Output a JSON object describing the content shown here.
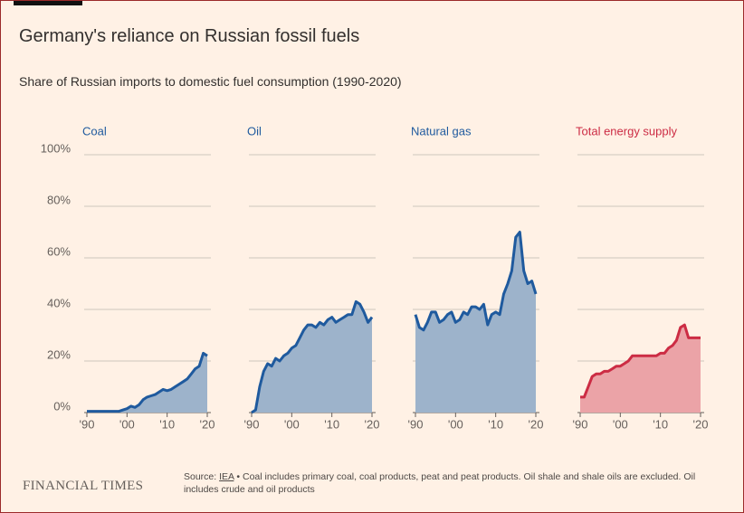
{
  "title": "Germany's reliance on Russian fossil fuels",
  "subtitle": "Share of Russian imports to domestic fuel consumption (1990-2020)",
  "brand": "FINANCIAL TIMES",
  "source_prefix": "Source:",
  "source_link": "IEA",
  "source_note": "• Coal includes primary coal, coal products, peat and peat products. Oil shale and shale oils are excluded. Oil includes crude and oil products",
  "chart_data": [
    {
      "type": "area",
      "title": "Coal",
      "line_color": "#1f5a9e",
      "fill_color": "#9db3cb",
      "x": [
        1990,
        1991,
        1992,
        1993,
        1994,
        1995,
        1996,
        1997,
        1998,
        1999,
        2000,
        2001,
        2002,
        2003,
        2004,
        2005,
        2006,
        2007,
        2008,
        2009,
        2010,
        2011,
        2012,
        2013,
        2014,
        2015,
        2016,
        2017,
        2018,
        2019,
        2020
      ],
      "values": [
        0.5,
        0.5,
        0.5,
        0.5,
        0.5,
        0.5,
        0.5,
        0.5,
        0.5,
        1,
        1.5,
        2.5,
        2,
        3,
        5,
        6,
        6.5,
        7,
        8,
        9,
        8.5,
        9,
        10,
        11,
        12,
        13,
        15,
        17,
        18,
        23,
        22
      ],
      "xlim": [
        1990,
        2020
      ],
      "ylim": [
        0,
        100
      ],
      "xticks": [
        {
          "value": 1990,
          "label": "'90"
        },
        {
          "value": 2000,
          "label": "'00"
        },
        {
          "value": 2010,
          "label": "'10"
        },
        {
          "value": 2020,
          "label": "'20"
        }
      ],
      "yticks": [
        {
          "value": 0,
          "label": "0%"
        },
        {
          "value": 20,
          "label": "20%"
        },
        {
          "value": 40,
          "label": "40%"
        },
        {
          "value": 60,
          "label": "60%"
        },
        {
          "value": 80,
          "label": "80%"
        },
        {
          "value": 100,
          "label": "100%"
        }
      ],
      "grid": true
    },
    {
      "type": "area",
      "title": "Oil",
      "line_color": "#1f5a9e",
      "fill_color": "#9db3cb",
      "x": [
        1990,
        1991,
        1992,
        1993,
        1994,
        1995,
        1996,
        1997,
        1998,
        1999,
        2000,
        2001,
        2002,
        2003,
        2004,
        2005,
        2006,
        2007,
        2008,
        2009,
        2010,
        2011,
        2012,
        2013,
        2014,
        2015,
        2016,
        2017,
        2018,
        2019,
        2020
      ],
      "values": [
        0,
        1,
        10,
        16,
        19,
        18,
        21,
        20,
        22,
        23,
        25,
        26,
        29,
        32,
        34,
        34,
        33,
        35,
        34,
        36,
        37,
        35,
        36,
        37,
        38,
        38,
        43,
        42,
        39,
        35,
        37
      ],
      "xlim": [
        1990,
        2020
      ],
      "ylim": [
        0,
        100
      ],
      "xticks": [
        {
          "value": 1990,
          "label": "'90"
        },
        {
          "value": 2000,
          "label": "'00"
        },
        {
          "value": 2010,
          "label": "'10"
        },
        {
          "value": 2020,
          "label": "'20"
        }
      ],
      "yticks": [
        0,
        20,
        40,
        60,
        80,
        100
      ],
      "grid": true
    },
    {
      "type": "area",
      "title": "Natural gas",
      "line_color": "#1f5a9e",
      "fill_color": "#9db3cb",
      "x": [
        1990,
        1991,
        1992,
        1993,
        1994,
        1995,
        1996,
        1997,
        1998,
        1999,
        2000,
        2001,
        2002,
        2003,
        2004,
        2005,
        2006,
        2007,
        2008,
        2009,
        2010,
        2011,
        2012,
        2013,
        2014,
        2015,
        2016,
        2017,
        2018,
        2019,
        2020
      ],
      "values": [
        38,
        33,
        32,
        35,
        39,
        39,
        35,
        36,
        38,
        39,
        35,
        36,
        39,
        38,
        41,
        41,
        40,
        42,
        34,
        38,
        39,
        38,
        46,
        50,
        55,
        68,
        70,
        55,
        50,
        51,
        46
      ],
      "xlim": [
        1990,
        2020
      ],
      "ylim": [
        0,
        100
      ],
      "xticks": [
        {
          "value": 1990,
          "label": "'90"
        },
        {
          "value": 2000,
          "label": "'00"
        },
        {
          "value": 2010,
          "label": "'10"
        },
        {
          "value": 2020,
          "label": "'20"
        }
      ],
      "yticks": [
        0,
        20,
        40,
        60,
        80,
        100
      ],
      "grid": true
    },
    {
      "type": "area",
      "title": "Total energy supply",
      "line_color": "#cc2c44",
      "fill_color": "#eba3a7",
      "x": [
        1990,
        1991,
        1992,
        1993,
        1994,
        1995,
        1996,
        1997,
        1998,
        1999,
        2000,
        2001,
        2002,
        2003,
        2004,
        2005,
        2006,
        2007,
        2008,
        2009,
        2010,
        2011,
        2012,
        2013,
        2014,
        2015,
        2016,
        2017,
        2018,
        2019,
        2020
      ],
      "values": [
        6,
        6,
        10,
        14,
        15,
        15,
        16,
        16,
        17,
        18,
        18,
        19,
        20,
        22,
        22,
        22,
        22,
        22,
        22,
        22,
        23,
        23,
        25,
        26,
        28,
        33,
        34,
        29,
        29,
        29,
        29
      ],
      "xlim": [
        1990,
        2020
      ],
      "ylim": [
        0,
        100
      ],
      "xticks": [
        {
          "value": 1990,
          "label": "'90"
        },
        {
          "value": 2000,
          "label": "'00"
        },
        {
          "value": 2010,
          "label": "'10"
        },
        {
          "value": 2020,
          "label": "'20"
        }
      ],
      "yticks": [
        0,
        20,
        40,
        60,
        80,
        100
      ],
      "grid": true
    }
  ]
}
